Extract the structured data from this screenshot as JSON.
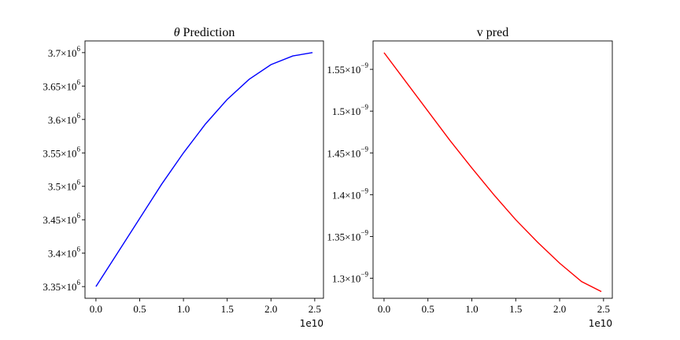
{
  "chart_data": [
    {
      "type": "line",
      "title": "θ Prediction",
      "title_symbol": "θ",
      "title_text": "Prediction",
      "xlabel": "",
      "ylabel": "",
      "x_offset_label": "1e10",
      "xlim": [
        -0.125,
        2.6
      ],
      "ylim": [
        3.3325,
        3.7175
      ],
      "x_ticks": [
        {
          "value": 0.0,
          "label": "0.0"
        },
        {
          "value": 0.5,
          "label": "0.5"
        },
        {
          "value": 1.0,
          "label": "1.0"
        },
        {
          "value": 1.5,
          "label": "1.5"
        },
        {
          "value": 2.0,
          "label": "2.0"
        },
        {
          "value": 2.5,
          "label": "2.5"
        }
      ],
      "y_ticks": [
        {
          "value": 3.35,
          "mant": "3.35",
          "exp": "6"
        },
        {
          "value": 3.4,
          "mant": "3.4",
          "exp": "6"
        },
        {
          "value": 3.45,
          "mant": "3.45",
          "exp": "6"
        },
        {
          "value": 3.5,
          "mant": "3.5",
          "exp": "6"
        },
        {
          "value": 3.55,
          "mant": "3.55",
          "exp": "6"
        },
        {
          "value": 3.6,
          "mant": "3.6",
          "exp": "6"
        },
        {
          "value": 3.65,
          "mant": "3.65",
          "exp": "6"
        },
        {
          "value": 3.7,
          "mant": "3.7",
          "exp": "6"
        }
      ],
      "series": [
        {
          "color": "#0000ff",
          "x": [
            0.0,
            0.25,
            0.5,
            0.75,
            1.0,
            1.25,
            1.5,
            1.75,
            2.0,
            2.25,
            2.475
          ],
          "y": [
            3.35,
            3.401,
            3.452,
            3.503,
            3.55,
            3.593,
            3.63,
            3.66,
            3.682,
            3.695,
            3.7
          ]
        }
      ]
    },
    {
      "type": "line",
      "title": "v pred",
      "xlabel": "",
      "ylabel": "",
      "x_offset_label": "1e10",
      "xlim": [
        -0.125,
        2.6
      ],
      "ylim": [
        1.276,
        1.584
      ],
      "x_ticks": [
        {
          "value": 0.0,
          "label": "0.0"
        },
        {
          "value": 0.5,
          "label": "0.5"
        },
        {
          "value": 1.0,
          "label": "1.0"
        },
        {
          "value": 1.5,
          "label": "1.5"
        },
        {
          "value": 2.0,
          "label": "2.0"
        },
        {
          "value": 2.5,
          "label": "2.5"
        }
      ],
      "y_ticks": [
        {
          "value": 1.3,
          "mant": "1.3",
          "exp": "−9"
        },
        {
          "value": 1.35,
          "mant": "1.35",
          "exp": "−9"
        },
        {
          "value": 1.4,
          "mant": "1.4",
          "exp": "−9"
        },
        {
          "value": 1.45,
          "mant": "1.45",
          "exp": "−9"
        },
        {
          "value": 1.5,
          "mant": "1.5",
          "exp": "−9"
        },
        {
          "value": 1.55,
          "mant": "1.55",
          "exp": "−9"
        }
      ],
      "series": [
        {
          "color": "#ff0000",
          "x": [
            0.0,
            0.25,
            0.5,
            0.75,
            1.0,
            1.25,
            1.5,
            1.75,
            2.0,
            2.25,
            2.475
          ],
          "y": [
            1.57,
            1.535,
            1.5,
            1.465,
            1.432,
            1.4,
            1.37,
            1.343,
            1.318,
            1.296,
            1.284
          ]
        }
      ]
    }
  ]
}
